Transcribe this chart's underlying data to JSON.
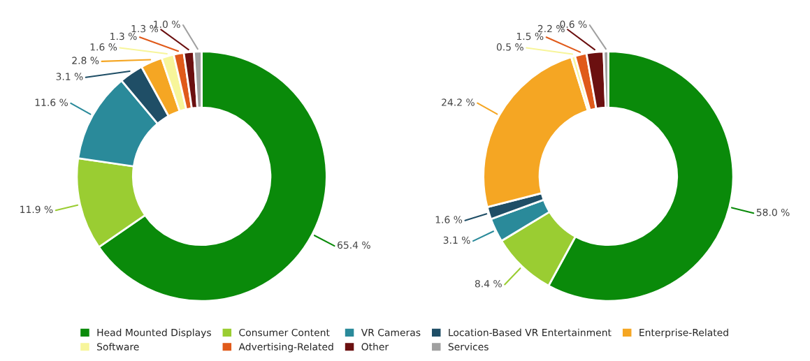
{
  "chart_data": [
    {
      "type": "donut",
      "legend": "bottom",
      "categories": [
        "Head Mounted Displays",
        "Consumer Content",
        "VR Cameras",
        "Location-Based VR Entertainment",
        "Enterprise-Related",
        "Software",
        "Advertising-Related",
        "Other",
        "Services"
      ],
      "values": [
        65.4,
        11.9,
        11.6,
        3.1,
        2.8,
        1.6,
        1.3,
        1.3,
        1.0
      ],
      "value_labels": [
        "65.4 %",
        "11.9 %",
        "11.6 %",
        "3.1 %",
        "2.8 %",
        "1.6 %",
        "1.3 %",
        "1.3 %",
        "1.0 %"
      ],
      "colors": [
        "#0a8a0a",
        "#9acd32",
        "#2a8a9a",
        "#1f4e66",
        "#f5a623",
        "#f7f59a",
        "#e05a1a",
        "#6b1010",
        "#a0a0a0"
      ]
    },
    {
      "type": "donut",
      "categories": [
        null,
        null,
        null,
        null,
        null,
        null,
        null,
        null,
        null
      ],
      "values": [
        58.0,
        8.4,
        3.1,
        1.6,
        24.2,
        0.5,
        1.5,
        2.2,
        0.6
      ],
      "value_labels": [
        "58.0 %",
        "8.4 %",
        "3.1 %",
        "1.6 %",
        "24.2 %",
        "0.5 %",
        "1.5 %",
        "2.2 %",
        "0.6 %"
      ],
      "colors": [
        "#0a8a0a",
        "#9acd32",
        "#2a8a9a",
        "#1f4e66",
        "#f5a623",
        "#f7f59a",
        "#e05a1a",
        "#6b1010",
        "#a0a0a0"
      ]
    }
  ]
}
